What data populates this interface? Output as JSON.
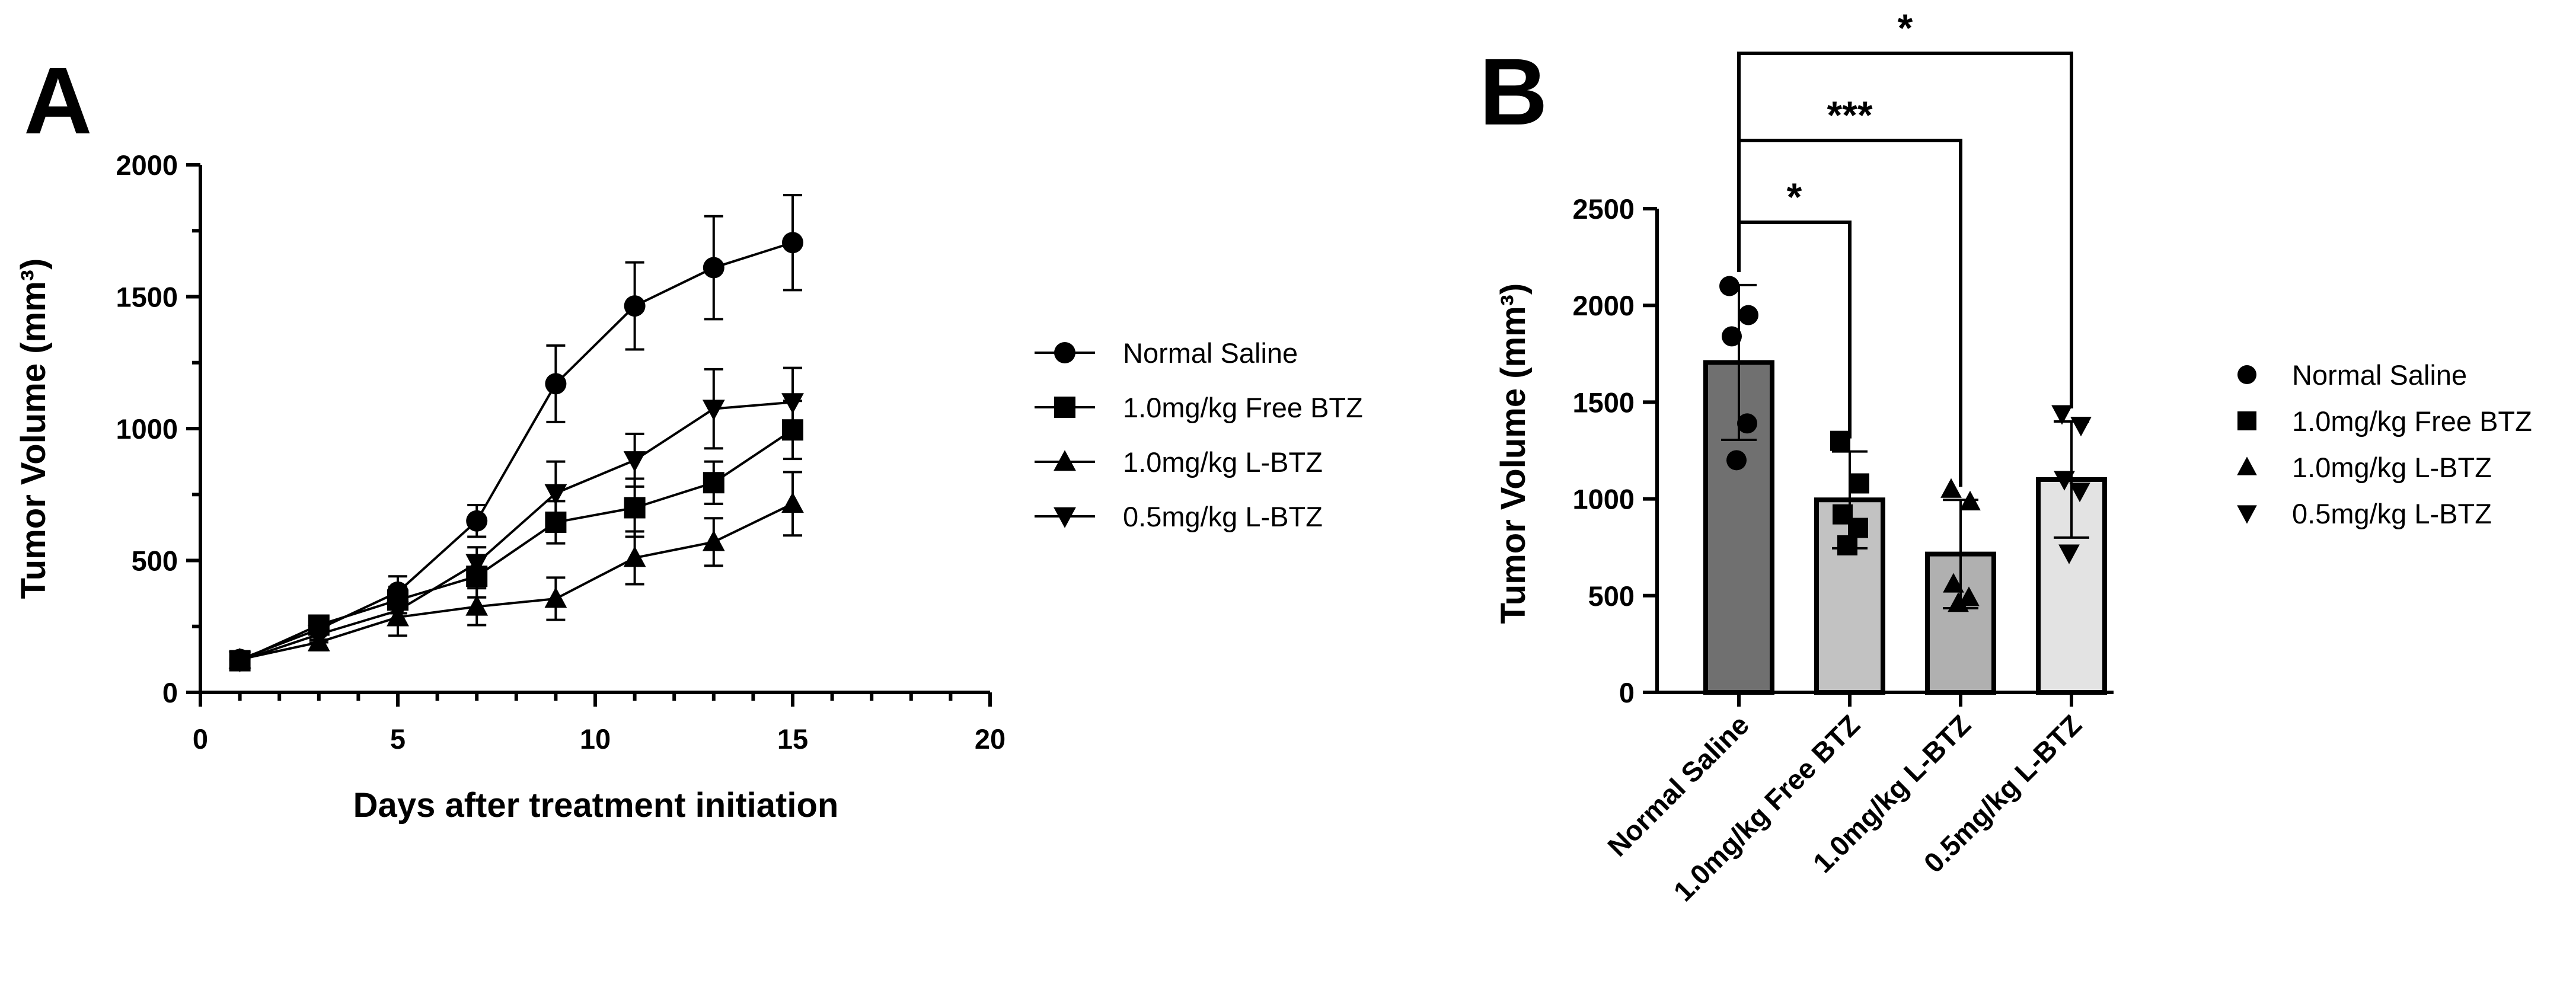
{
  "panels": {
    "a": "A",
    "b": "B"
  },
  "chart_data": [
    {
      "type": "line",
      "panel": "A",
      "xlabel": "Days after treatment initiation",
      "ylabel": "Tumor Volume (mm³)",
      "xlim": [
        0,
        20
      ],
      "ylim": [
        0,
        2000
      ],
      "xticks": [
        "0",
        "5",
        "10",
        "15",
        "20"
      ],
      "yticks": [
        "0",
        "500",
        "1000",
        "1500",
        "2000"
      ],
      "x": [
        1,
        3,
        5,
        7,
        9,
        11,
        13,
        15
      ],
      "legend_position": "right",
      "series": [
        {
          "name": "Normal Saline",
          "marker": "circle",
          "values": [
            125,
            240,
            380,
            650,
            1170,
            1465,
            1610,
            1705
          ],
          "errors": [
            25,
            40,
            60,
            60,
            145,
            165,
            195,
            180
          ]
        },
        {
          "name": "1.0mg/kg Free BTZ",
          "marker": "square",
          "values": [
            120,
            255,
            350,
            440,
            645,
            700,
            795,
            995
          ],
          "errors": [
            20,
            35,
            50,
            80,
            80,
            110,
            80,
            110
          ]
        },
        {
          "name": "1.0mg/kg L-BTZ",
          "marker": "triangle-up",
          "values": [
            125,
            190,
            285,
            325,
            355,
            510,
            570,
            715
          ],
          "errors": [
            20,
            30,
            70,
            70,
            80,
            100,
            90,
            120
          ]
        },
        {
          "name": "0.5mg/kg L-BTZ",
          "marker": "triangle-down",
          "values": [
            120,
            220,
            310,
            490,
            755,
            880,
            1075,
            1100
          ],
          "errors": [
            20,
            30,
            50,
            60,
            120,
            100,
            150,
            130
          ]
        }
      ]
    },
    {
      "type": "bar",
      "panel": "B",
      "ylabel": "Tumor Volume (mm³)",
      "ylim": [
        0,
        2500
      ],
      "yticks": [
        "0",
        "500",
        "1000",
        "1500",
        "2000",
        "2500"
      ],
      "categories": [
        "Normal Saline",
        "1.0mg/kg Free BTZ",
        "1.0mg/kg L-BTZ",
        "0.5mg/kg L-BTZ"
      ],
      "values": [
        1705,
        995,
        715,
        1100
      ],
      "errors": [
        400,
        250,
        280,
        300
      ],
      "bar_colors": [
        "#707070",
        "#c2c2c2",
        "#b0b0b0",
        "#e3e3e3"
      ],
      "points": [
        [
          2100,
          1950,
          1840,
          1390,
          1200
        ],
        [
          1300,
          1080,
          920,
          850,
          760
        ],
        [
          1050,
          985,
          560,
          490,
          460
        ],
        [
          1440,
          1380,
          1100,
          1040,
          720
        ]
      ],
      "point_markers": [
        "circle",
        "square",
        "triangle-up",
        "triangle-down"
      ],
      "significance": [
        {
          "from": 0,
          "to": 1,
          "label": "*"
        },
        {
          "from": 0,
          "to": 2,
          "label": "***"
        },
        {
          "from": 0,
          "to": 3,
          "label": "*"
        }
      ],
      "legend_position": "right",
      "legend": [
        "Normal Saline",
        "1.0mg/kg Free BTZ",
        "1.0mg/kg L-BTZ",
        "0.5mg/kg L-BTZ"
      ]
    }
  ]
}
